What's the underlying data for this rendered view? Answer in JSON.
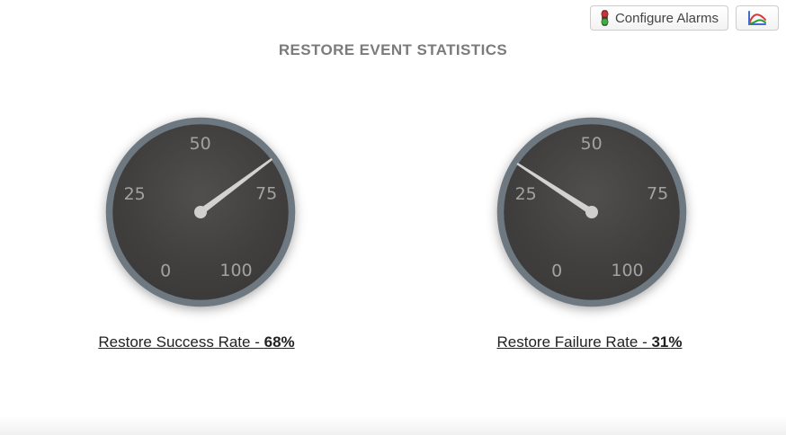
{
  "header": {
    "title": "RESTORE EVENT STATISTICS"
  },
  "toolbar": {
    "configure_alarms": {
      "label": "Configure Alarms",
      "icon": "traffic-light-icon"
    },
    "chart_button": {
      "icon": "line-chart-icon"
    }
  },
  "gauges": [
    {
      "id": "restore-success-rate",
      "label": "Restore Success Rate - ",
      "value_text": "68%",
      "value": 68
    },
    {
      "id": "restore-failure-rate",
      "label": "Restore Failure Rate - ",
      "value_text": "31%",
      "value": 31
    }
  ],
  "gauge_scale": {
    "min": 0,
    "max": 100,
    "tick_values": [
      0,
      25,
      50,
      75,
      100
    ],
    "start_angle_deg": 239.3,
    "end_angle_deg": -58.7,
    "tick_label_radius": 76,
    "needle_length": 99
  },
  "colors": {
    "title_text": "#7b7b7b",
    "gauge_rim": "#6e7880",
    "gauge_face_center": "#504f4d",
    "gauge_face_edge": "#363636",
    "gauge_tick_text": "#a2a2a2",
    "needle": "#d2d2d2",
    "hub": "#cfcfcf",
    "caption_text": "#222222",
    "button_border": "#cccccc",
    "button_text": "#444444",
    "traffic_light_red": "#cc3333",
    "traffic_light_green": "#3fae3f"
  }
}
